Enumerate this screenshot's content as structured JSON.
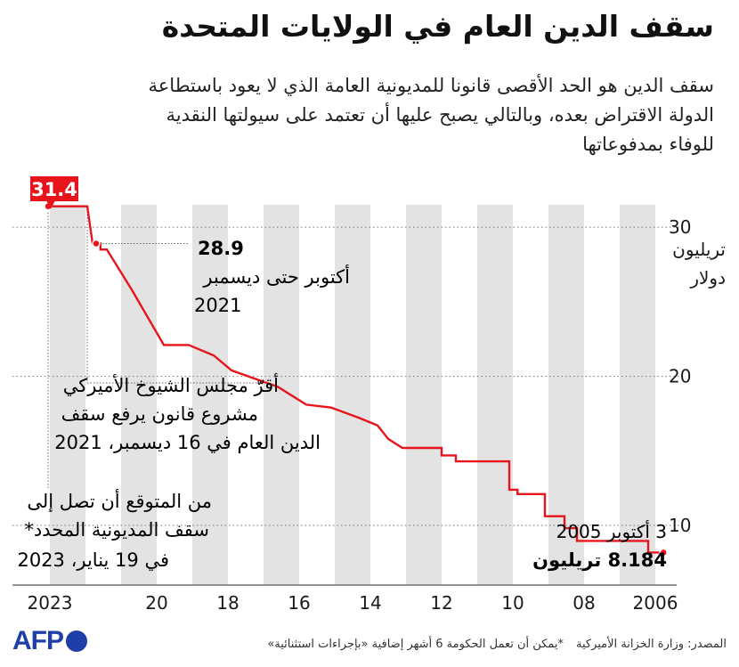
{
  "header": {
    "title": "سقف الدين العام في الولايات المتحدة",
    "subtitle_lines": [
      "سقف الدين هو الحد الأقصى قانونا للمديونية العامة الذي لا يعود باستطاعة",
      "الدولة الاقتراض بعده، وبالتالي يصبح عليها أن تعتمد على سيولتها النقدية",
      "للوفاء بمدفوعاتها"
    ]
  },
  "colors": {
    "line": "#e8141c",
    "band": "#e3e3e3",
    "text": "#1a1a1a",
    "afp": "#1e3fa8"
  },
  "chart_data": {
    "type": "line",
    "x_axis": {
      "direction": "reversed",
      "ticks": [
        "2023",
        "20",
        "18",
        "16",
        "14",
        "12",
        "10",
        "08",
        "2006"
      ],
      "tick_years": [
        2023,
        2020,
        2018,
        2016,
        2014,
        2012,
        2010,
        2008,
        2006
      ],
      "xlim": [
        2005.7,
        2023.2
      ]
    },
    "y_axis": {
      "ticks": [
        10,
        20,
        30
      ],
      "ylim": [
        6,
        31.5
      ],
      "unit_label": [
        "تريليون",
        "دولار"
      ]
    },
    "series": [
      {
        "points": [
          [
            2005.77,
            8.184
          ],
          [
            2006.2,
            8.184
          ],
          [
            2006.2,
            8.965
          ],
          [
            2008.2,
            8.965
          ],
          [
            2008.2,
            9.815
          ],
          [
            2008.55,
            9.815
          ],
          [
            2008.55,
            10.615
          ],
          [
            2009.1,
            10.615
          ],
          [
            2009.1,
            12.104
          ],
          [
            2009.87,
            12.104
          ],
          [
            2009.87,
            12.394
          ],
          [
            2010.1,
            12.394
          ],
          [
            2010.1,
            14.294
          ],
          [
            2011.6,
            14.294
          ],
          [
            2011.6,
            14.694
          ],
          [
            2012.0,
            14.694
          ],
          [
            2012.0,
            15.194
          ],
          [
            2013.1,
            15.194
          ],
          [
            2013.5,
            15.8
          ],
          [
            2013.8,
            16.7
          ],
          [
            2014.3,
            17.2
          ],
          [
            2015.1,
            17.9
          ],
          [
            2015.8,
            18.1
          ],
          [
            2016.6,
            19.3
          ],
          [
            2017.2,
            19.8
          ],
          [
            2017.9,
            20.4
          ],
          [
            2018.4,
            21.4
          ],
          [
            2019.1,
            22.1
          ],
          [
            2019.8,
            22.1
          ],
          [
            2020.7,
            25.8
          ],
          [
            2021.4,
            28.5
          ],
          [
            2021.58,
            28.5
          ],
          [
            2021.58,
            28.9
          ],
          [
            2021.8,
            28.9
          ],
          [
            2021.95,
            31.4
          ],
          [
            2023.05,
            31.4
          ]
        ]
      }
    ],
    "annotations": [
      {
        "value": "31.4"
      },
      {
        "value": "28.9",
        "lines": [
          "أكتوبر حتى ديسمبر",
          "2021"
        ]
      },
      {
        "lines": [
          "أقرّ مجلس الشيوخ الأميركي",
          "مشروع قانون يرفع سقف",
          "الدين العام في 16 ديسمبر، 2021"
        ]
      },
      {
        "lines": [
          "من المتوقع أن تصل إلى",
          "سقف المديونية المحدد*",
          "في 19 يناير، 2023"
        ]
      },
      {
        "date": "3 أكتوبر 2005",
        "value": "8.184 تريليون"
      }
    ]
  },
  "footer": {
    "source": "المصدر: وزارة الخزانة الأميركية",
    "note": "*يمكن أن تعمل الحكومة 6 أشهر إضافية «بإجراءات استثنائية»",
    "logo": "AFP"
  }
}
